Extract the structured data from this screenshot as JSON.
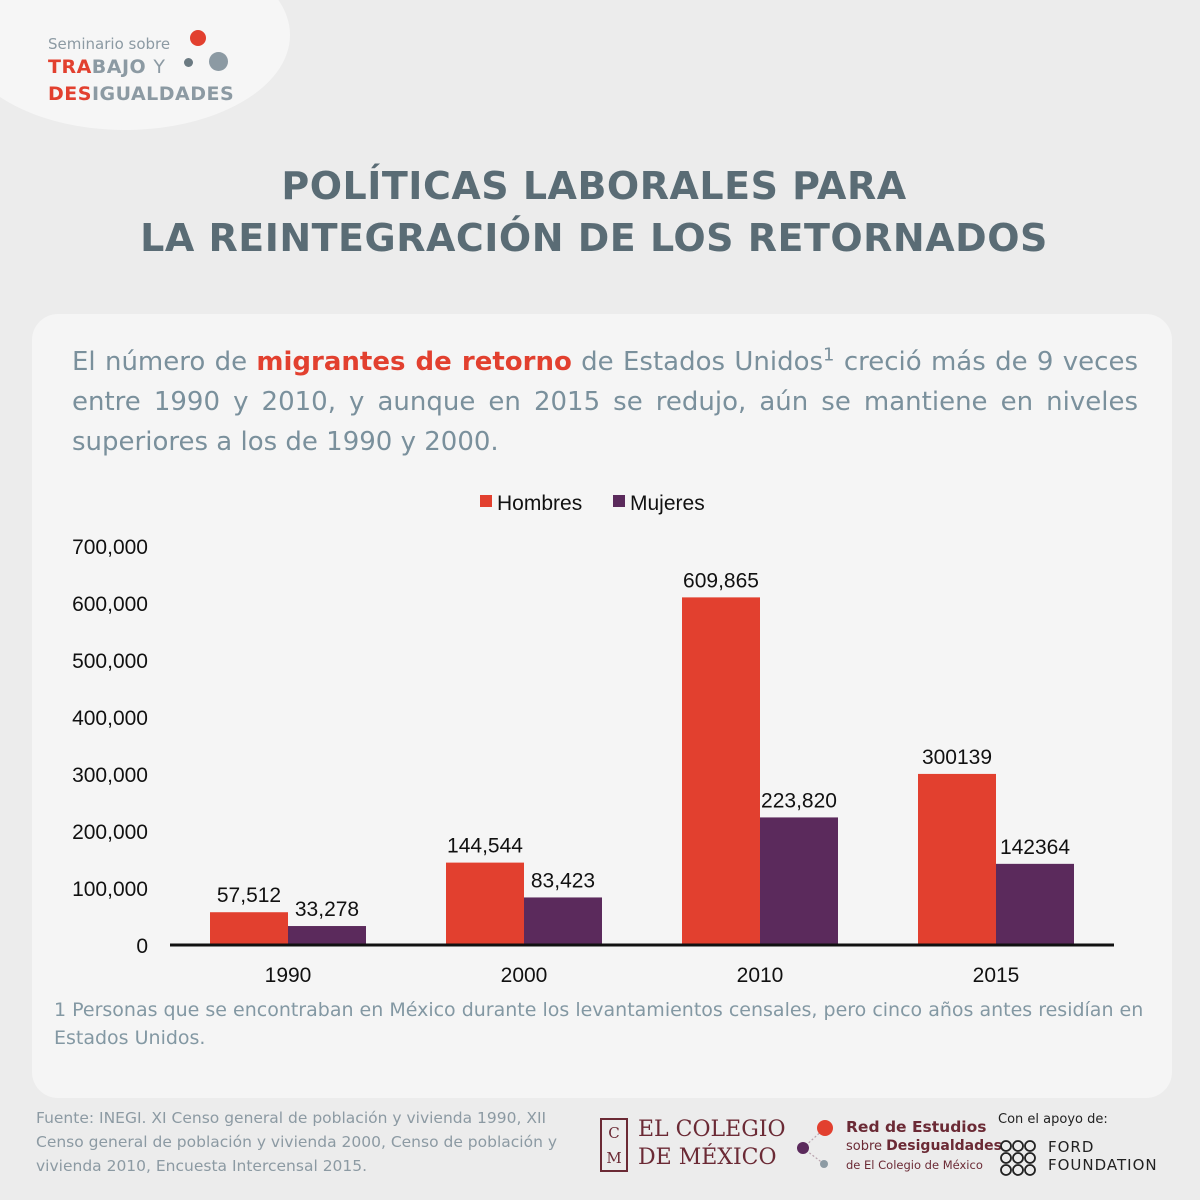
{
  "header": {
    "seminar_small": "Seminario sobre",
    "line1_hl": "TRA",
    "line1_rest": "BAJO",
    "line1_y": "Y",
    "line2_hl": "DES",
    "line2_rest": "IGUALDADES"
  },
  "title": {
    "line1": "POLÍTICAS LABORALES PARA",
    "line2": "LA REINTEGRACIÓN DE LOS RETORNADOS"
  },
  "intro": {
    "part1": "El número de ",
    "highlight": "migrantes de retorno",
    "part2": " de Estados Unidos",
    "sup": "1",
    "part3": " creció más de 9 veces entre 1990 y 2010, y aunque en 2015 se redujo, aún se mantiene en niveles superiores a los de 1990 y 2000."
  },
  "chart_data": {
    "type": "bar",
    "categories": [
      "1990",
      "2000",
      "2010",
      "2015"
    ],
    "series": [
      {
        "name": "Hombres",
        "color": "#e2402f",
        "values": [
          57512,
          144544,
          609865,
          300139
        ],
        "labels": [
          "57,512",
          "144,544",
          "609,865",
          "300139"
        ]
      },
      {
        "name": "Mujeres",
        "color": "#5b2a5c",
        "values": [
          33278,
          83423,
          223820,
          142364
        ],
        "labels": [
          "33,278",
          "83,423",
          "223,820",
          "142364"
        ]
      }
    ],
    "ylim": [
      0,
      700000
    ],
    "yticks": [
      "0",
      "100,000",
      "200,000",
      "300,000",
      "400,000",
      "500,000",
      "600,000",
      "700,000"
    ],
    "legend": "top-center",
    "grid": false
  },
  "footnote": "1 Personas que se encontraban en México durante los levantamientos censales, pero cinco años antes residían en Estados Unidos.",
  "source": "Fuente: INEGI. XI Censo general de población y vivienda 1990, XII Censo general de población y vivienda 2000, Censo de población y vivienda 2010, Encuesta Intercensal 2015.",
  "logos": {
    "colmex_c": "C",
    "colmex_m": "M",
    "colmex_line1": "EL COLEGIO",
    "colmex_line2": "DE MÉXICO",
    "red_line1": "Red de Estudios",
    "red_line2_small": "sobre ",
    "red_line2": "Desigualdades",
    "red_line3": "de El Colegio de México",
    "ford_label": "Con el apoyo de:",
    "ford_line1": "FORD",
    "ford_line2": "FOUNDATION"
  },
  "colors": {
    "accent_red": "#e2402f",
    "accent_purple": "#5b2a5c",
    "title_gray": "#5a6c75",
    "text_gray": "#7a909c",
    "dot_gray": "#8c9aa3",
    "dot_dark": "#6b7a82"
  }
}
